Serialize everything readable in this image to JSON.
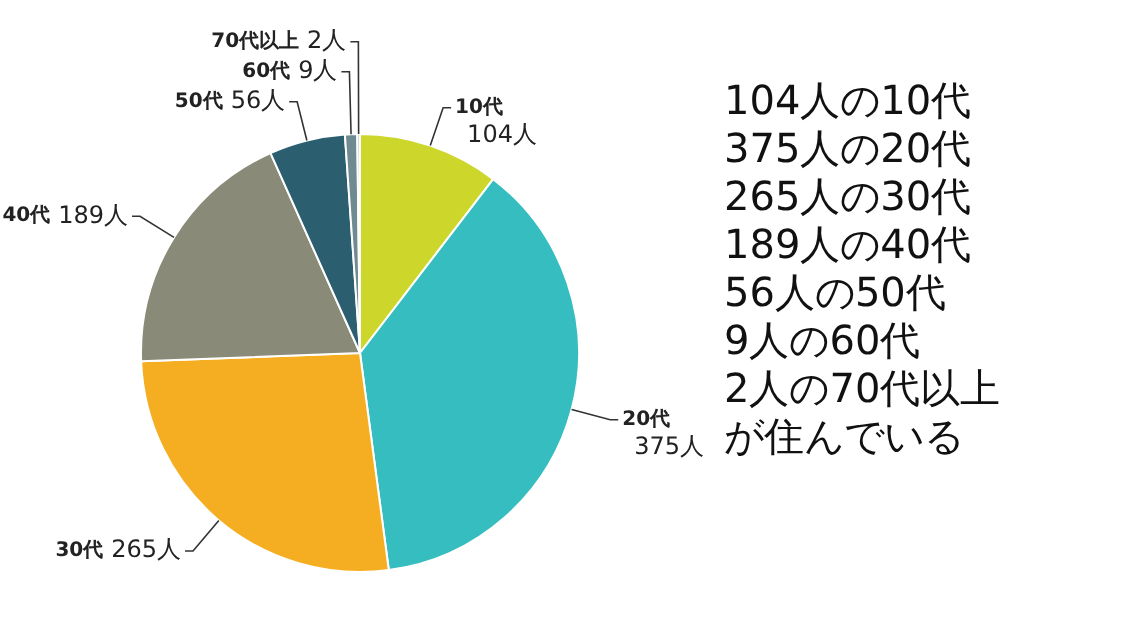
{
  "chart_data": {
    "type": "pie",
    "categories": [
      "10代",
      "20代",
      "30代",
      "40代",
      "50代",
      "60代",
      "70代以上"
    ],
    "values": [
      104,
      375,
      265,
      189,
      56,
      9,
      2
    ],
    "value_labels": [
      "104人",
      "375人",
      "265人",
      "189人",
      "56人",
      "9人",
      "2人"
    ],
    "colors": [
      "#cdd62b",
      "#35bdbf",
      "#f5ae22",
      "#8a8a78",
      "#2b5f70",
      "#6f8a90",
      "#c8c8c8"
    ],
    "legend": false,
    "annotations": [
      "104人の10代",
      "375人の20代",
      "265人の30代",
      "189人の40代",
      "56人の50代",
      "9人の60代",
      "2人の70代以上",
      "が住んでいる"
    ]
  }
}
